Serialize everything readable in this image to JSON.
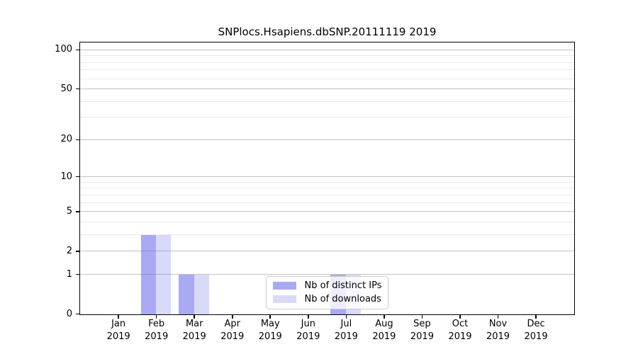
{
  "chart_data": {
    "type": "bar",
    "title": "SNPlocs.Hsapiens.dbSNP.20111119 2019",
    "categories": [
      "Jan",
      "Feb",
      "Mar",
      "Apr",
      "May",
      "Jun",
      "Jul",
      "Aug",
      "Sep",
      "Oct",
      "Nov",
      "Dec"
    ],
    "xlabel_year": "2019",
    "series": [
      {
        "name": "Nb of distinct IPs",
        "color": "#a9aaf3",
        "values": [
          0,
          3,
          1,
          0,
          0,
          0,
          1,
          0,
          0,
          0,
          0,
          0
        ]
      },
      {
        "name": "Nb of downloads",
        "color": "#d9d9f8",
        "values": [
          0,
          3,
          1,
          0,
          0,
          0,
          1,
          0,
          0,
          0,
          0,
          0
        ]
      }
    ],
    "yaxis": {
      "scale": "log10(1+y)",
      "major_ticks": [
        0,
        1,
        2,
        5,
        10,
        20,
        50,
        100
      ],
      "minor_gridlines": [
        3,
        4,
        6,
        7,
        8,
        9,
        30,
        40,
        60,
        70,
        80,
        90
      ],
      "ylim": [
        0,
        113
      ],
      "grid": true
    },
    "xlim": [
      -1,
      12
    ],
    "bar_width_fraction": 0.4,
    "legend": {
      "position": "lower center",
      "frame_alpha": 0.8
    }
  }
}
